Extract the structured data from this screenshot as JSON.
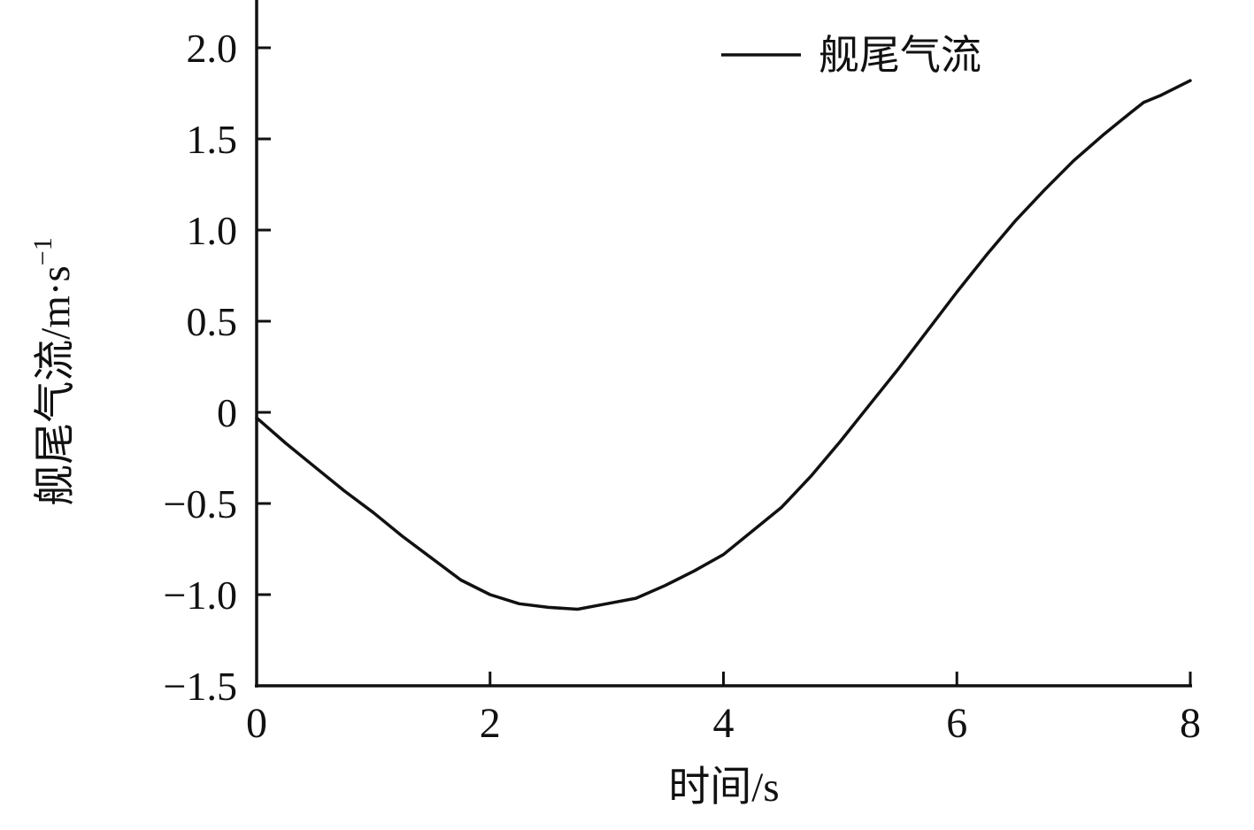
{
  "chart_data": {
    "type": "line",
    "title": "",
    "xlabel": "时间/s",
    "ylabel": "舰尾气流/m·s⁻¹",
    "ylabel_base": "舰尾气流/m·s",
    "ylabel_sup": "−1",
    "xlim": [
      0,
      8
    ],
    "ylim": [
      -1.5,
      2.27
    ],
    "grid": false,
    "legend_position": "top-right-inside",
    "line_color": "#111111",
    "xticks": [
      {
        "v": 0,
        "label": "0"
      },
      {
        "v": 2,
        "label": "2"
      },
      {
        "v": 4,
        "label": "4"
      },
      {
        "v": 6,
        "label": "6"
      },
      {
        "v": 8,
        "label": "8"
      }
    ],
    "yticks": [
      {
        "v": 2.0,
        "label": "2.0"
      },
      {
        "v": 1.5,
        "label": "1.5"
      },
      {
        "v": 1.0,
        "label": "1.0"
      },
      {
        "v": 0.5,
        "label": "0.5"
      },
      {
        "v": 0.0,
        "label": "0"
      },
      {
        "v": -0.5,
        "label": "−0.5"
      },
      {
        "v": -1.0,
        "label": "−1.0"
      },
      {
        "v": -1.5,
        "label": "−1.5"
      }
    ],
    "series": [
      {
        "name": "舰尾气流",
        "color": "#111111",
        "x": [
          0,
          0.25,
          0.5,
          0.75,
          1.0,
          1.25,
          1.5,
          1.75,
          2.0,
          2.25,
          2.5,
          2.75,
          3.0,
          3.25,
          3.5,
          3.75,
          4.0,
          4.25,
          4.5,
          4.75,
          5.0,
          5.25,
          5.5,
          5.75,
          6.0,
          6.25,
          6.5,
          6.75,
          7.0,
          7.25,
          7.5,
          7.6,
          7.75,
          8.0
        ],
        "y": [
          -0.03,
          -0.17,
          -0.3,
          -0.43,
          -0.55,
          -0.68,
          -0.8,
          -0.92,
          -1.0,
          -1.05,
          -1.07,
          -1.08,
          -1.05,
          -1.02,
          -0.95,
          -0.87,
          -0.78,
          -0.65,
          -0.52,
          -0.35,
          -0.16,
          0.04,
          0.24,
          0.45,
          0.66,
          0.86,
          1.05,
          1.22,
          1.38,
          1.52,
          1.65,
          1.7,
          1.74,
          1.82
        ]
      }
    ]
  }
}
